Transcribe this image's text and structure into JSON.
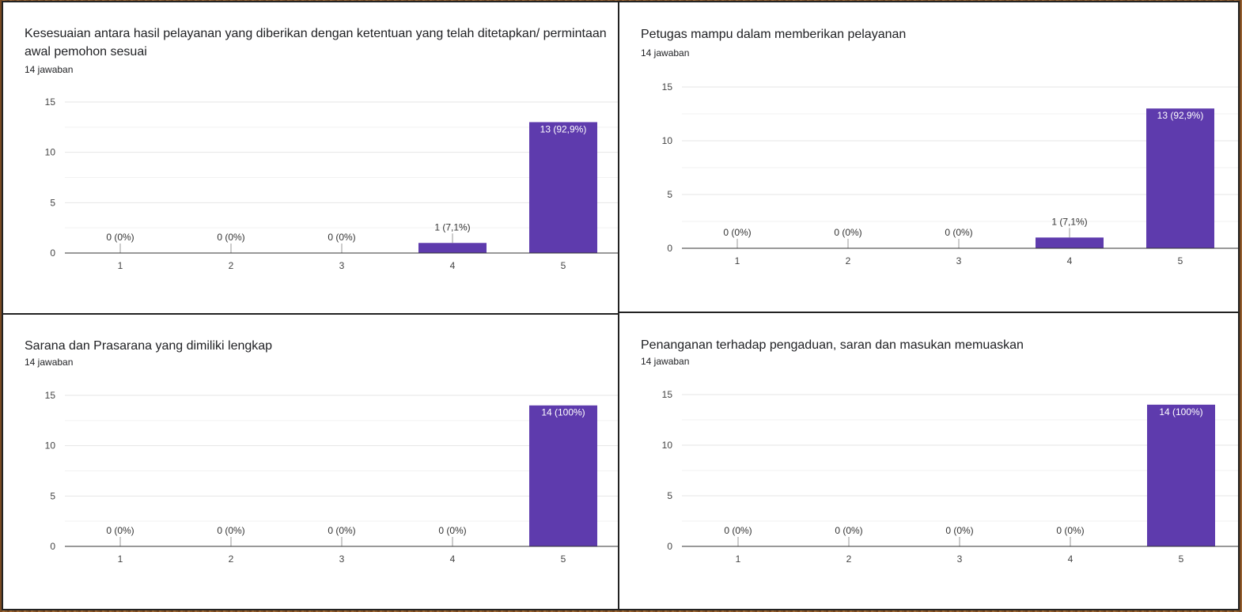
{
  "chart_data": [
    {
      "type": "bar",
      "title": "Kesesuaian antara hasil pelayanan yang diberikan dengan ketentuan yang telah ditetapkan/ permintaan awal pemohon sesuai",
      "subtitle": "14 jawaban",
      "categories": [
        "1",
        "2",
        "3",
        "4",
        "5"
      ],
      "values": [
        0,
        0,
        0,
        1,
        13
      ],
      "labels": [
        "0 (0%)",
        "0 (0%)",
        "0 (0%)",
        "1 (7,1%)",
        "13 (92,9%)"
      ],
      "yticks": [
        "0",
        "5",
        "10",
        "15"
      ],
      "ylim": [
        0,
        15
      ],
      "color": "#5e3bad"
    },
    {
      "type": "bar",
      "title": "Petugas mampu dalam memberikan pelayanan",
      "subtitle": "14 jawaban",
      "categories": [
        "1",
        "2",
        "3",
        "4",
        "5"
      ],
      "values": [
        0,
        0,
        0,
        1,
        13
      ],
      "labels": [
        "0 (0%)",
        "0 (0%)",
        "0 (0%)",
        "1 (7,1%)",
        "13 (92,9%)"
      ],
      "yticks": [
        "0",
        "5",
        "10",
        "15"
      ],
      "ylim": [
        0,
        15
      ],
      "color": "#5e3bad"
    },
    {
      "type": "bar",
      "title": "Sarana dan Prasarana yang dimiliki lengkap",
      "subtitle": "14 jawaban",
      "categories": [
        "1",
        "2",
        "3",
        "4",
        "5"
      ],
      "values": [
        0,
        0,
        0,
        0,
        14
      ],
      "labels": [
        "0 (0%)",
        "0 (0%)",
        "0 (0%)",
        "0 (0%)",
        "14 (100%)"
      ],
      "yticks": [
        "0",
        "5",
        "10",
        "15"
      ],
      "ylim": [
        0,
        15
      ],
      "color": "#5e3bad"
    },
    {
      "type": "bar",
      "title": "Penanganan terhadap pengaduan, saran dan masukan memuaskan",
      "subtitle": "14 jawaban",
      "categories": [
        "1",
        "2",
        "3",
        "4",
        "5"
      ],
      "values": [
        0,
        0,
        0,
        0,
        14
      ],
      "labels": [
        "0 (0%)",
        "0 (0%)",
        "0 (0%)",
        "0 (0%)",
        "14 (100%)"
      ],
      "yticks": [
        "0",
        "5",
        "10",
        "15"
      ],
      "ylim": [
        0,
        15
      ],
      "color": "#5e3bad"
    }
  ]
}
